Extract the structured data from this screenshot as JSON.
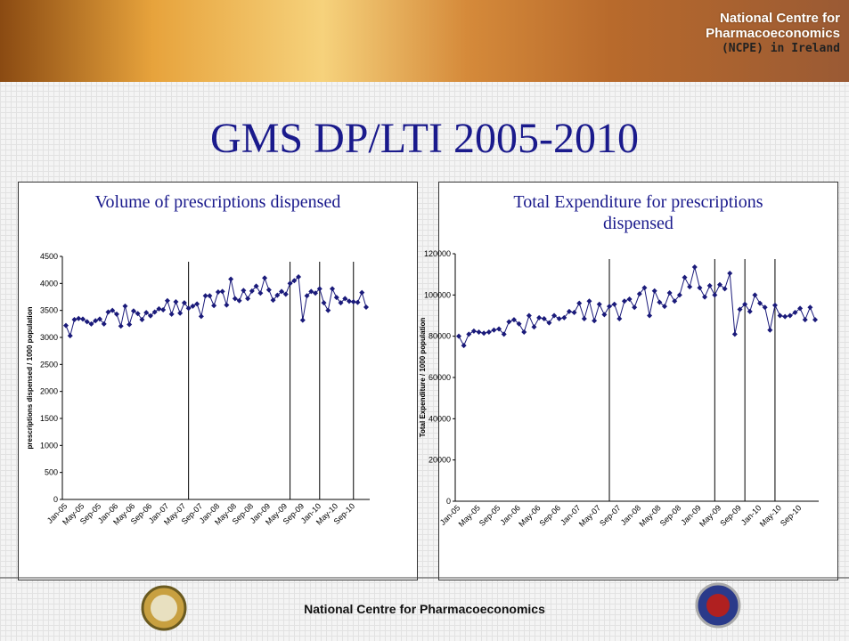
{
  "header": {
    "lines": [
      "National Centre for",
      "Pharmacoeconomics",
      "(NCPE) in Ireland"
    ]
  },
  "title": "GMS DP/LTI 2005-2010",
  "footer": "National Centre for Pharmacoeconomics",
  "chart_data": [
    {
      "type": "line",
      "title": "Volume of prescriptions dispensed",
      "ylabel": "prescriptions dispensed / 1000 population",
      "categories": [
        "Jan-05",
        null,
        null,
        null,
        "May-05",
        null,
        null,
        null,
        "Sep-05",
        null,
        null,
        null,
        "Jan-06",
        null,
        null,
        null,
        "May-06",
        null,
        null,
        null,
        "Sep-06",
        null,
        null,
        null,
        "Jan-07",
        null,
        null,
        null,
        "May-07",
        null,
        null,
        null,
        "Sep-07",
        null,
        null,
        null,
        "Jan-08",
        null,
        null,
        null,
        "May-08",
        null,
        null,
        null,
        "Sep-08",
        null,
        null,
        null,
        "Jan-09",
        null,
        null,
        null,
        "May-09",
        null,
        null,
        null,
        "Sep-09",
        null,
        null,
        null,
        "Jan-10",
        null,
        null,
        null,
        "May-10",
        null,
        null,
        null,
        "Sep-10",
        null,
        null,
        null
      ],
      "values": [
        3220,
        3030,
        3330,
        3350,
        3340,
        3290,
        3250,
        3310,
        3340,
        3250,
        3470,
        3500,
        3430,
        3210,
        3580,
        3240,
        3490,
        3440,
        3330,
        3460,
        3400,
        3470,
        3530,
        3510,
        3680,
        3430,
        3660,
        3450,
        3640,
        3540,
        3580,
        3620,
        3390,
        3770,
        3770,
        3590,
        3840,
        3850,
        3600,
        4080,
        3720,
        3680,
        3870,
        3720,
        3860,
        3950,
        3820,
        4100,
        3880,
        3690,
        3780,
        3850,
        3800,
        4000,
        4050,
        4120,
        3320,
        3770,
        3850,
        3820,
        3900,
        3640,
        3500,
        3900,
        3740,
        3640,
        3720,
        3670,
        3660,
        3650,
        3830,
        3560
      ],
      "color": "#1a1a7a",
      "ylim": [
        0,
        4500
      ],
      "yticks": [
        0,
        500,
        1000,
        1500,
        2000,
        2500,
        3000,
        3500,
        4000,
        4500
      ],
      "vlines": [
        29,
        53,
        60,
        68
      ]
    },
    {
      "type": "line",
      "title": "Total Expenditure for prescriptions dispensed",
      "ylabel": "Total Expenditure / 1000 population",
      "categories": [
        "Jan-05",
        null,
        null,
        null,
        "May-05",
        null,
        null,
        null,
        "Sep-05",
        null,
        null,
        null,
        "Jan-06",
        null,
        null,
        null,
        "May-06",
        null,
        null,
        null,
        "Sep-06",
        null,
        null,
        null,
        "Jan-07",
        null,
        null,
        null,
        "May-07",
        null,
        null,
        null,
        "Sep-07",
        null,
        null,
        null,
        "Jan-08",
        null,
        null,
        null,
        "May-08",
        null,
        null,
        null,
        "Sep-08",
        null,
        null,
        null,
        "Jan-09",
        null,
        null,
        null,
        "May-09",
        null,
        null,
        null,
        "Sep-09",
        null,
        null,
        null,
        "Jan-10",
        null,
        null,
        null,
        "May-10",
        null,
        null,
        null,
        "Sep-10",
        null,
        null,
        null
      ],
      "values": [
        80000,
        75500,
        81000,
        82500,
        82000,
        81500,
        82000,
        83000,
        83500,
        81000,
        87000,
        88000,
        86000,
        82000,
        90000,
        84500,
        89000,
        88500,
        86500,
        90000,
        88500,
        89000,
        92000,
        91500,
        96000,
        88500,
        97000,
        87500,
        95500,
        90500,
        94500,
        95500,
        88500,
        97000,
        98000,
        94000,
        100500,
        103500,
        90000,
        102000,
        96500,
        94500,
        101000,
        97000,
        100000,
        108500,
        104000,
        113500,
        103500,
        99000,
        104500,
        100000,
        105000,
        103000,
        110500,
        81000,
        93000,
        95500,
        92000,
        100000,
        96000,
        94000,
        83000,
        95000,
        90000,
        89500,
        90000,
        91500,
        93500,
        88000,
        94000,
        88000
      ],
      "color": "#1a1a7a",
      "ylim": [
        0,
        120000
      ],
      "yticks": [
        0,
        20000,
        40000,
        60000,
        80000,
        100000,
        120000
      ],
      "vlines": [
        30,
        51,
        57,
        63
      ]
    }
  ]
}
